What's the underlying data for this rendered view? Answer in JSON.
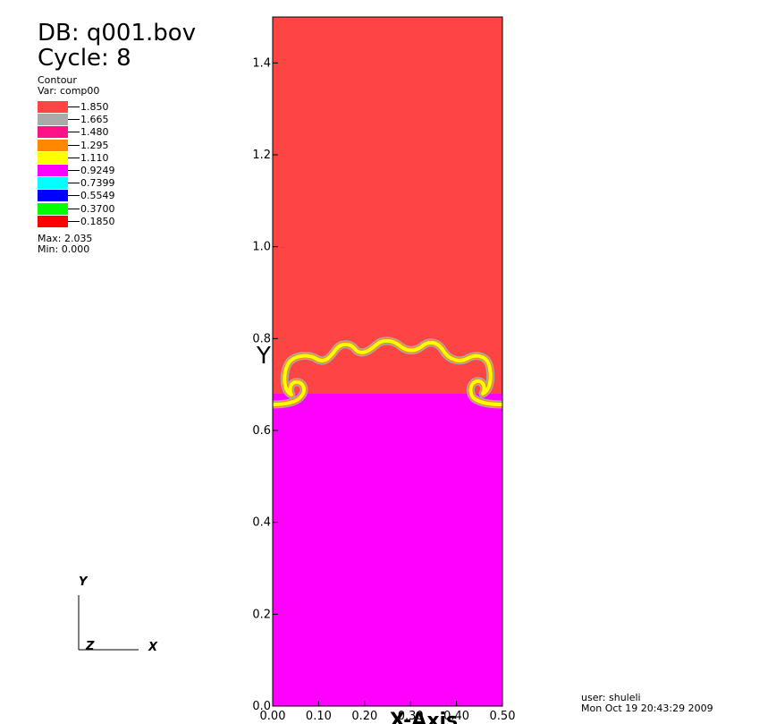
{
  "header": {
    "db": "DB: q001.bov",
    "cycle": "Cycle: 8"
  },
  "legend": {
    "plot_type": "Contour",
    "variable": "Var: comp00",
    "levels": [
      {
        "label": "1.850",
        "color": "#ff4444"
      },
      {
        "label": "1.665",
        "color": "#aaaaaa"
      },
      {
        "label": "1.480",
        "color": "#ff1188"
      },
      {
        "label": "1.295",
        "color": "#ff8800"
      },
      {
        "label": "1.110",
        "color": "#ffff00"
      },
      {
        "label": "0.9249",
        "color": "#ff00ff"
      },
      {
        "label": "0.7399",
        "color": "#00ffff"
      },
      {
        "label": "0.5549",
        "color": "#0000ff"
      },
      {
        "label": "0.3700",
        "color": "#00ff00"
      },
      {
        "label": "0.1850",
        "color": "#ff0000"
      }
    ],
    "max": "Max: 2.035",
    "min": "Min: 0.000"
  },
  "axes": {
    "y_ticks": [
      "0.0",
      "0.2",
      "0.4",
      "0.6",
      "0.8",
      "1.0",
      "1.2",
      "1.4"
    ],
    "x_ticks": [
      "0.00",
      "0.10",
      "0.20",
      "0.30",
      "0.40",
      "0.50"
    ],
    "y_title": "Y",
    "x_title": "X-Axis",
    "xlim": [
      0,
      0.5
    ],
    "ylim": [
      0,
      1.5
    ]
  },
  "triad": {
    "x": "X",
    "y": "Y",
    "z": "Z"
  },
  "footer": {
    "user": "user: shuleli",
    "timestamp": "Mon Oct 19 20:43:29 2009"
  },
  "colors": {
    "upper_fluid": "#ff4444",
    "lower_fluid": "#ff00ff",
    "interface_outer": "#aaaaaa",
    "interface_mid": "#ff8800",
    "interface_inner": "#ffff00"
  }
}
